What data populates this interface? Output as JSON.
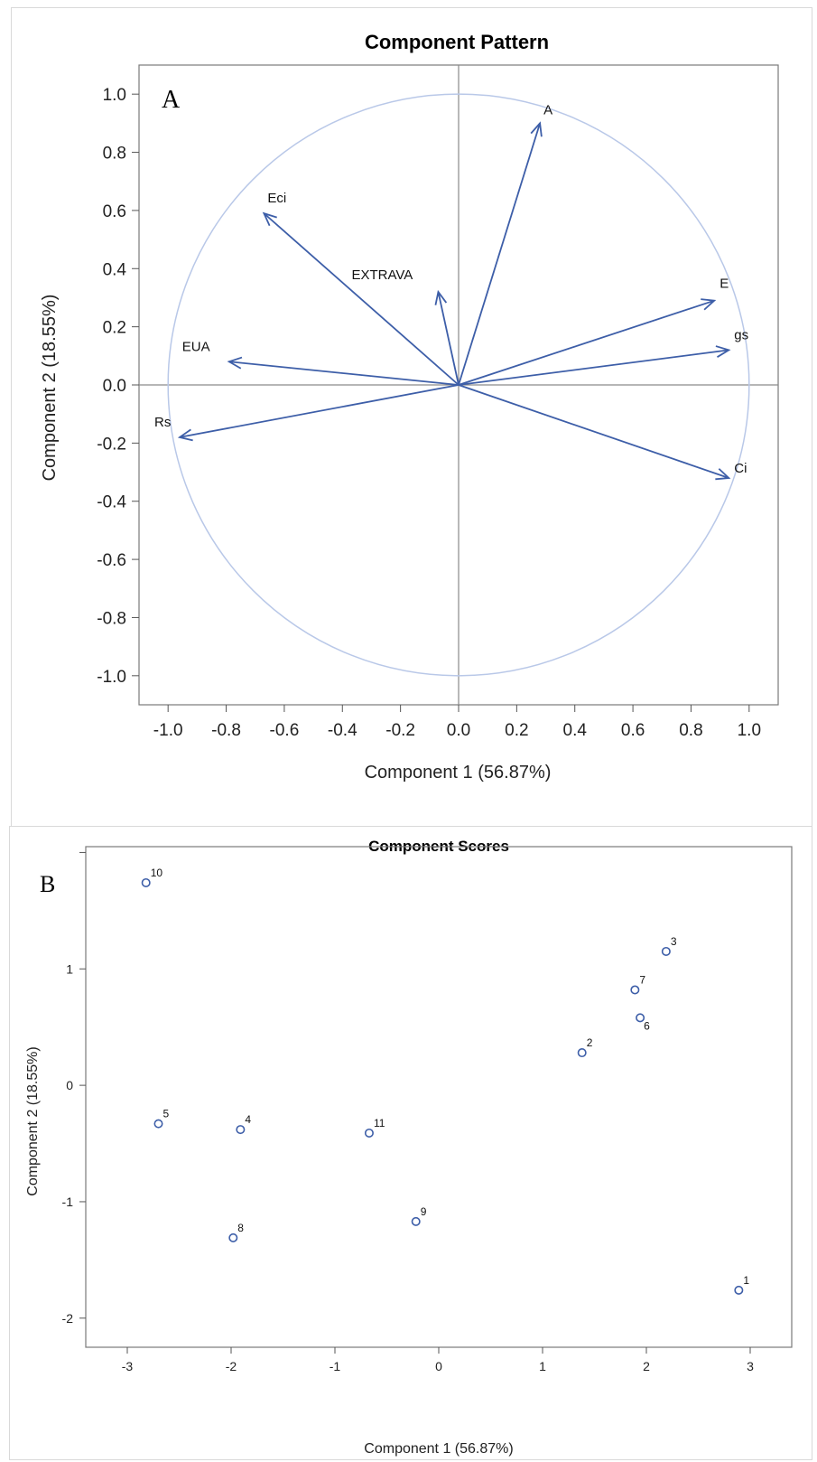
{
  "chart_data": [
    {
      "type": "vector-loadings",
      "panel_label": "A",
      "title": "Component Pattern",
      "xlabel": "Component 1 (56.87%)",
      "ylabel": "Component 2 (18.55%)",
      "xlim": [
        -1.1,
        1.1
      ],
      "ylim": [
        -1.1,
        1.1
      ],
      "xticks": [
        "-1.0",
        "-0.8",
        "-0.6",
        "-0.4",
        "-0.2",
        "0.0",
        "0.2",
        "0.4",
        "0.6",
        "0.8",
        "1.0"
      ],
      "yticks": [
        "1.0",
        "0.8",
        "0.6",
        "0.4",
        "0.2",
        "0.0",
        "-0.2",
        "-0.4",
        "-0.6",
        "-0.8",
        "-1.0"
      ],
      "unit_circle": true,
      "reference_lines": "x=0, y=0",
      "line_color": "#3d5ea8",
      "circle_color": "#b9c8e8",
      "vectors": [
        {
          "label": "A",
          "x": 0.28,
          "y": 0.9
        },
        {
          "label": "Eci",
          "x": -0.67,
          "y": 0.59
        },
        {
          "label": "EXTRAVA",
          "x": -0.07,
          "y": 0.32
        },
        {
          "label": "E",
          "x": 0.88,
          "y": 0.29
        },
        {
          "label": "gs",
          "x": 0.93,
          "y": 0.12
        },
        {
          "label": "EUA",
          "x": -0.79,
          "y": 0.08
        },
        {
          "label": "Rs",
          "x": -0.96,
          "y": -0.18
        },
        {
          "label": "Ci",
          "x": 0.93,
          "y": -0.32
        }
      ]
    },
    {
      "type": "scatter",
      "panel_label": "B",
      "title": "Component Scores",
      "xlabel": "Component 1 (56.87%)",
      "ylabel": "Component 2 (18.55%)",
      "xlim": [
        -3.4,
        3.4
      ],
      "ylim": [
        -2.25,
        2.05
      ],
      "xticks": [
        "-3",
        "-2",
        "-1",
        "0",
        "1",
        "2",
        "3"
      ],
      "yticks": [
        "1",
        "0",
        "-1",
        "-2"
      ],
      "marker_color": "#3d5ea8",
      "points": [
        {
          "label": "10",
          "x": -2.82,
          "y": 1.74
        },
        {
          "label": "3",
          "x": 2.19,
          "y": 1.15
        },
        {
          "label": "7",
          "x": 1.89,
          "y": 0.82
        },
        {
          "label": "6",
          "x": 1.94,
          "y": 0.58
        },
        {
          "label": "2",
          "x": 1.38,
          "y": 0.28
        },
        {
          "label": "5",
          "x": -2.7,
          "y": -0.33
        },
        {
          "label": "4",
          "x": -1.91,
          "y": -0.38
        },
        {
          "label": "11",
          "x": -0.67,
          "y": -0.41
        },
        {
          "label": "9",
          "x": -0.22,
          "y": -1.17
        },
        {
          "label": "8",
          "x": -1.98,
          "y": -1.31
        },
        {
          "label": "1",
          "x": 2.89,
          "y": -1.76
        }
      ]
    }
  ]
}
